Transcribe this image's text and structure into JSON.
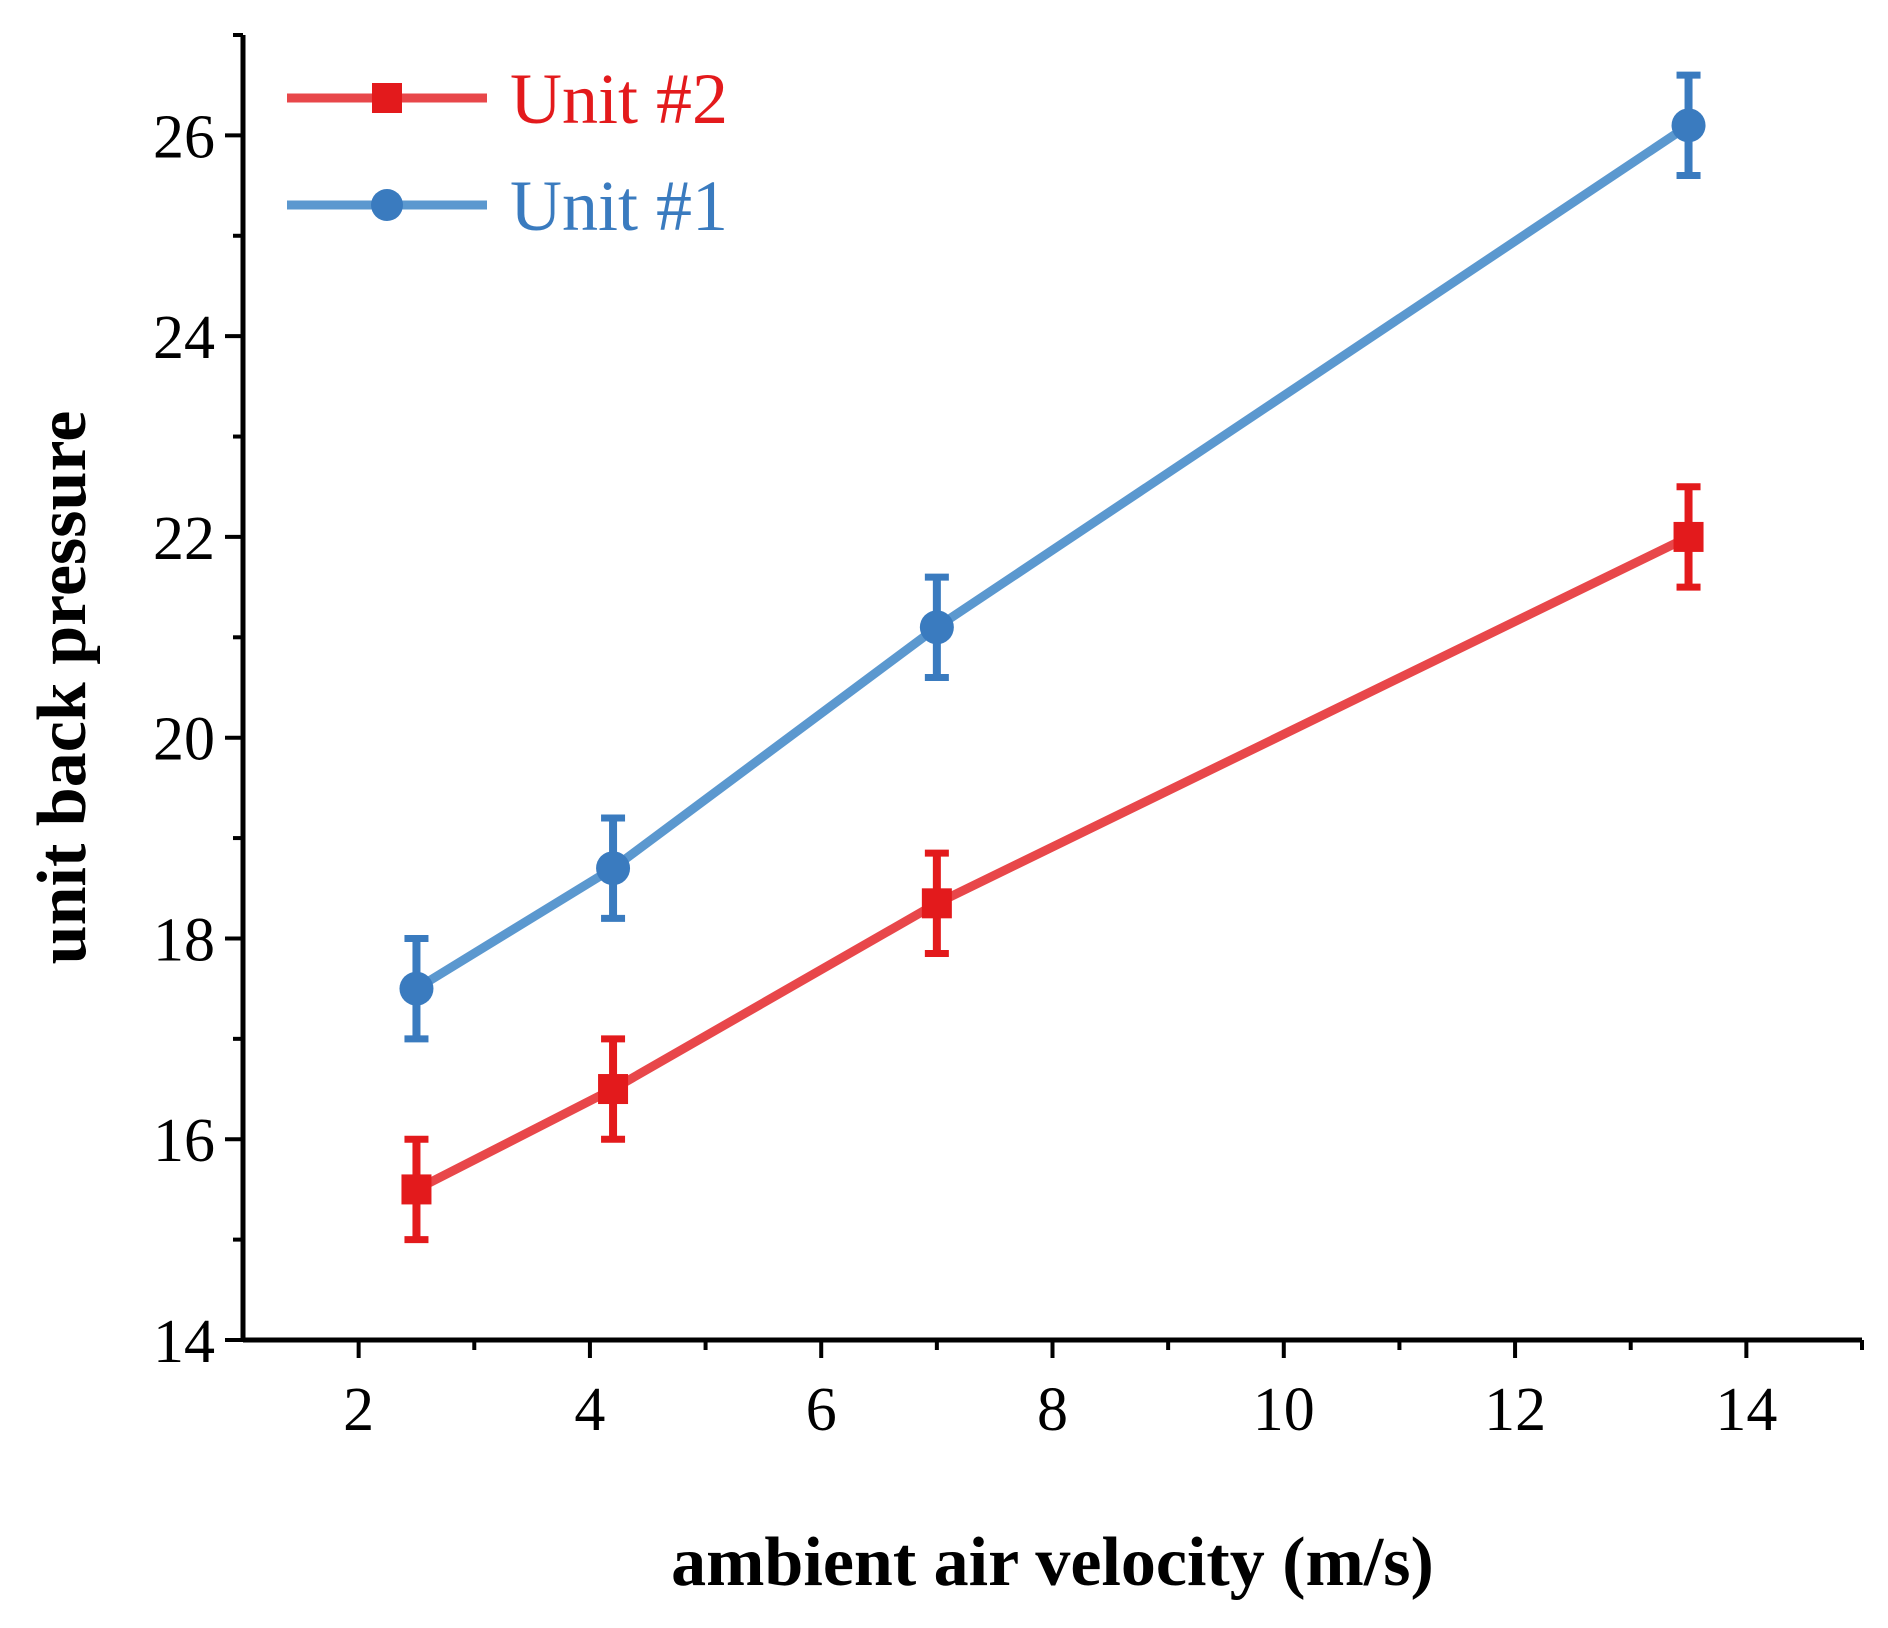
{
  "chart_data": {
    "type": "line",
    "title": "",
    "xlabel": "ambient air velocity (m/s)",
    "ylabel": "unit back pressure",
    "xlim": [
      1,
      15
    ],
    "ylim": [
      14,
      27
    ],
    "x_ticks": [
      2,
      4,
      6,
      8,
      10,
      12,
      14
    ],
    "x_tick_labels": [
      "2",
      "4",
      "6",
      "8",
      "10",
      "12",
      "14"
    ],
    "x_minor_ticks": [
      3,
      5,
      7,
      9,
      11,
      13,
      15
    ],
    "y_ticks": [
      14,
      16,
      18,
      20,
      22,
      24,
      26
    ],
    "y_tick_labels": [
      "14",
      "16",
      "18",
      "20",
      "22",
      "24",
      "26"
    ],
    "y_minor_ticks": [
      15,
      17,
      19,
      21,
      23,
      25,
      27
    ],
    "legend_position": "top-left",
    "series": [
      {
        "name": "Unit #2",
        "color": "#e31a1c",
        "line_color": "#e8474a",
        "marker": "square",
        "x": [
          2.5,
          4.2,
          7,
          13.5
        ],
        "y": [
          15.5,
          16.5,
          18.35,
          22
        ],
        "error": [
          0.5,
          0.5,
          0.5,
          0.5
        ]
      },
      {
        "name": "Unit #1",
        "color": "#3a7bbf",
        "line_color": "#5b98cf",
        "marker": "circle",
        "x": [
          2.5,
          4.2,
          7,
          13.5
        ],
        "y": [
          17.5,
          18.7,
          21.1,
          26.1
        ],
        "error": [
          0.5,
          0.5,
          0.5,
          0.5
        ]
      }
    ]
  }
}
